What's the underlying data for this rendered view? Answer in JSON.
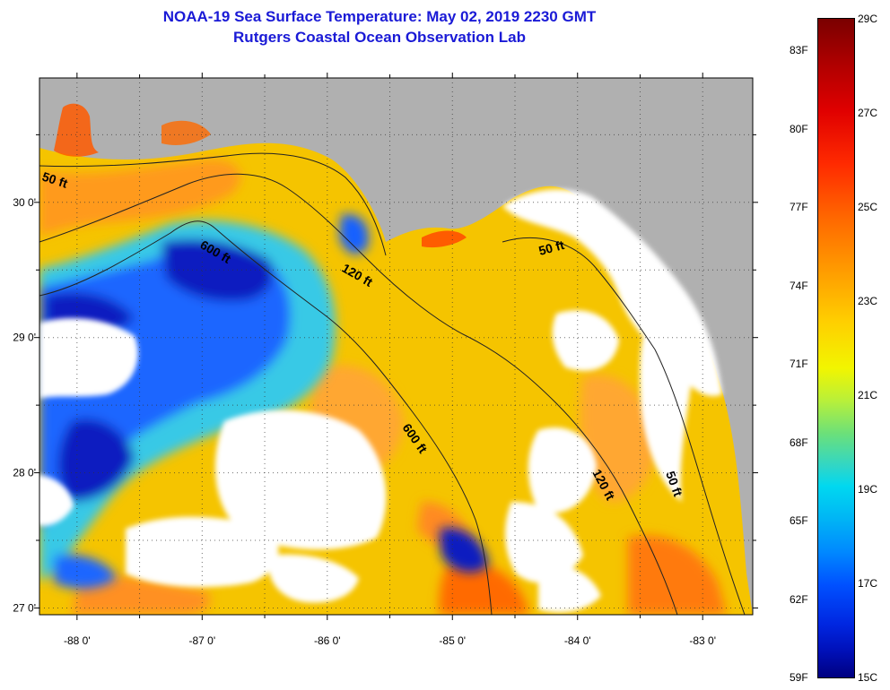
{
  "title": {
    "line1": "NOAA-19 Sea Surface Temperature:  May 02, 2019 2230 GMT",
    "line2": "Rutgers Coastal Ocean Observation Lab"
  },
  "map": {
    "lon_range": [
      -88.3,
      -82.6
    ],
    "lat_range": [
      26.95,
      30.92
    ],
    "x_ticks": [
      {
        "lon": -88,
        "label": "-88 0'"
      },
      {
        "lon": -87,
        "label": "-87 0'"
      },
      {
        "lon": -86,
        "label": "-86 0'"
      },
      {
        "lon": -85,
        "label": "-85 0'"
      },
      {
        "lon": -84,
        "label": "-84 0'"
      },
      {
        "lon": -83,
        "label": "-83 0'"
      }
    ],
    "y_ticks": [
      {
        "lat": 30,
        "label": "30 0'"
      },
      {
        "lat": 29,
        "label": "29 0'"
      },
      {
        "lat": 28,
        "label": "28 0'"
      },
      {
        "lat": 27,
        "label": "27 0'"
      }
    ],
    "contour_labels": [
      "50 ft",
      "600 ft",
      "120 ft",
      "50 ft",
      "600 ft",
      "120 ft",
      "50 ft"
    ],
    "colors": {
      "land": "#b0b0b0",
      "cloud": "#ffffff",
      "isobath": "#222222"
    }
  },
  "colorbar": {
    "fahrenheit": [
      "83F",
      "80F",
      "77F",
      "74F",
      "71F",
      "68F",
      "65F",
      "62F",
      "59F"
    ],
    "celsius": [
      "29C",
      "27C",
      "25C",
      "23C",
      "21C",
      "19C",
      "17C",
      "15C"
    ],
    "range_celsius": [
      15,
      29
    ]
  }
}
